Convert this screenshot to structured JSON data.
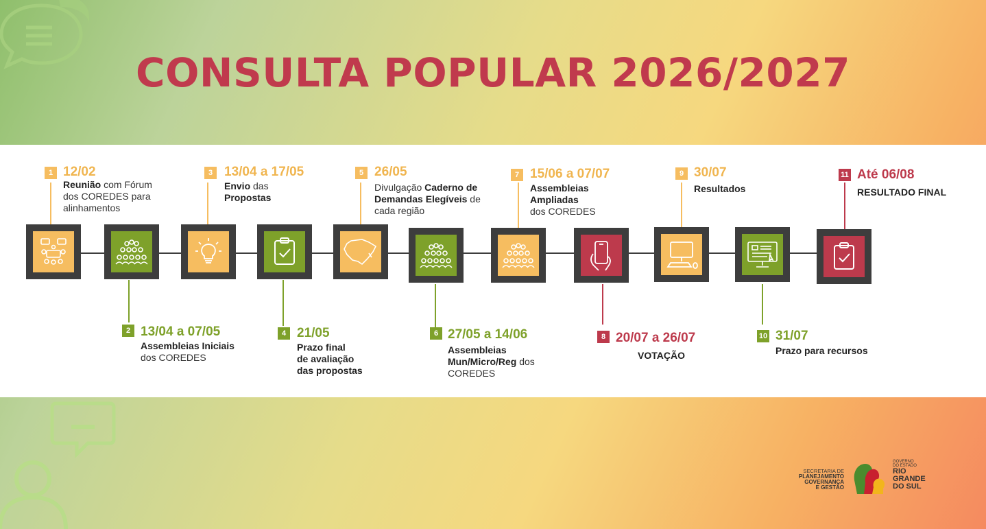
{
  "title": "CONSULTA POPULAR 2026/2027",
  "colors": {
    "orange": "#f6bd60",
    "green": "#7ea12a",
    "red": "#bd3a4c",
    "frame": "#3d3d3d",
    "title": "#c03a4d"
  },
  "steps": [
    {
      "num": "1",
      "date": "12/02",
      "color": "orange",
      "icon": "meeting-icon",
      "desc": [
        {
          "b": "Reunião",
          "t": " com Fórum"
        },
        {
          "t": "dos COREDES para"
        },
        {
          "t": "alinhamentos"
        }
      ]
    },
    {
      "num": "2",
      "date": "13/04 a 07/05",
      "color": "green",
      "icon": "assembly-icon",
      "desc": [
        {
          "b": "Assembleias Iniciais"
        },
        {
          "t": "dos COREDES"
        }
      ]
    },
    {
      "num": "3",
      "date": "13/04 a 17/05",
      "color": "orange",
      "icon": "lightbulb-icon",
      "desc": [
        {
          "b": "Envio",
          "t": " das "
        },
        {
          "b": "Propostas"
        }
      ]
    },
    {
      "num": "4",
      "date": "21/05",
      "color": "green",
      "icon": "clipboard-check-icon",
      "desc": [
        {
          "b": "Prazo final"
        },
        {
          "b": "de avaliação"
        },
        {
          "b": "das propostas"
        }
      ]
    },
    {
      "num": "5",
      "date": "26/05",
      "color": "orange",
      "icon": "map-rs-icon",
      "desc": [
        {
          "t": "Divulgação ",
          "b": "Caderno de"
        },
        {
          "b": "Demandas Elegíveis",
          "t": " de"
        },
        {
          "t": "cada região"
        }
      ]
    },
    {
      "num": "6",
      "date": "27/05 a 14/06",
      "color": "green",
      "icon": "assembly-icon",
      "desc": [
        {
          "b": "Assembleias"
        },
        {
          "b": "Mun/Micro/Reg",
          "t": " dos"
        },
        {
          "t": "COREDES"
        }
      ]
    },
    {
      "num": "7",
      "date": "15/06 a 07/07",
      "color": "orange",
      "icon": "assembly-icon",
      "desc": [
        {
          "b": "Assembleias"
        },
        {
          "b": "Ampliadas"
        },
        {
          "t": "dos COREDES"
        }
      ]
    },
    {
      "num": "8",
      "date": "20/07 a 26/07",
      "color": "red",
      "icon": "smartphone-icon",
      "desc": [
        {
          "b": "VOTAÇÃO"
        }
      ]
    },
    {
      "num": "9",
      "date": "30/07",
      "color": "orange",
      "icon": "computer-icon",
      "desc": [
        {
          "b": "Resultados"
        }
      ]
    },
    {
      "num": "10",
      "date": "31/07",
      "color": "green",
      "icon": "monitor-document-icon",
      "desc": [
        {
          "b": "Prazo para recursos"
        }
      ]
    },
    {
      "num": "11",
      "date": "Até 06/08",
      "color": "red",
      "icon": "clipboard-check-icon",
      "desc": [
        {
          "b": "RESULTADO FINAL"
        }
      ]
    }
  ],
  "logo": {
    "left": [
      "SECRETARIA DE",
      "PLANEJAMENTO",
      "GOVERNANÇA",
      "E GESTÃO"
    ],
    "right_small": [
      "GOVERNO",
      "DO ESTADO"
    ],
    "right_big": [
      "RIO",
      "GRANDE",
      "DO SUL"
    ]
  }
}
